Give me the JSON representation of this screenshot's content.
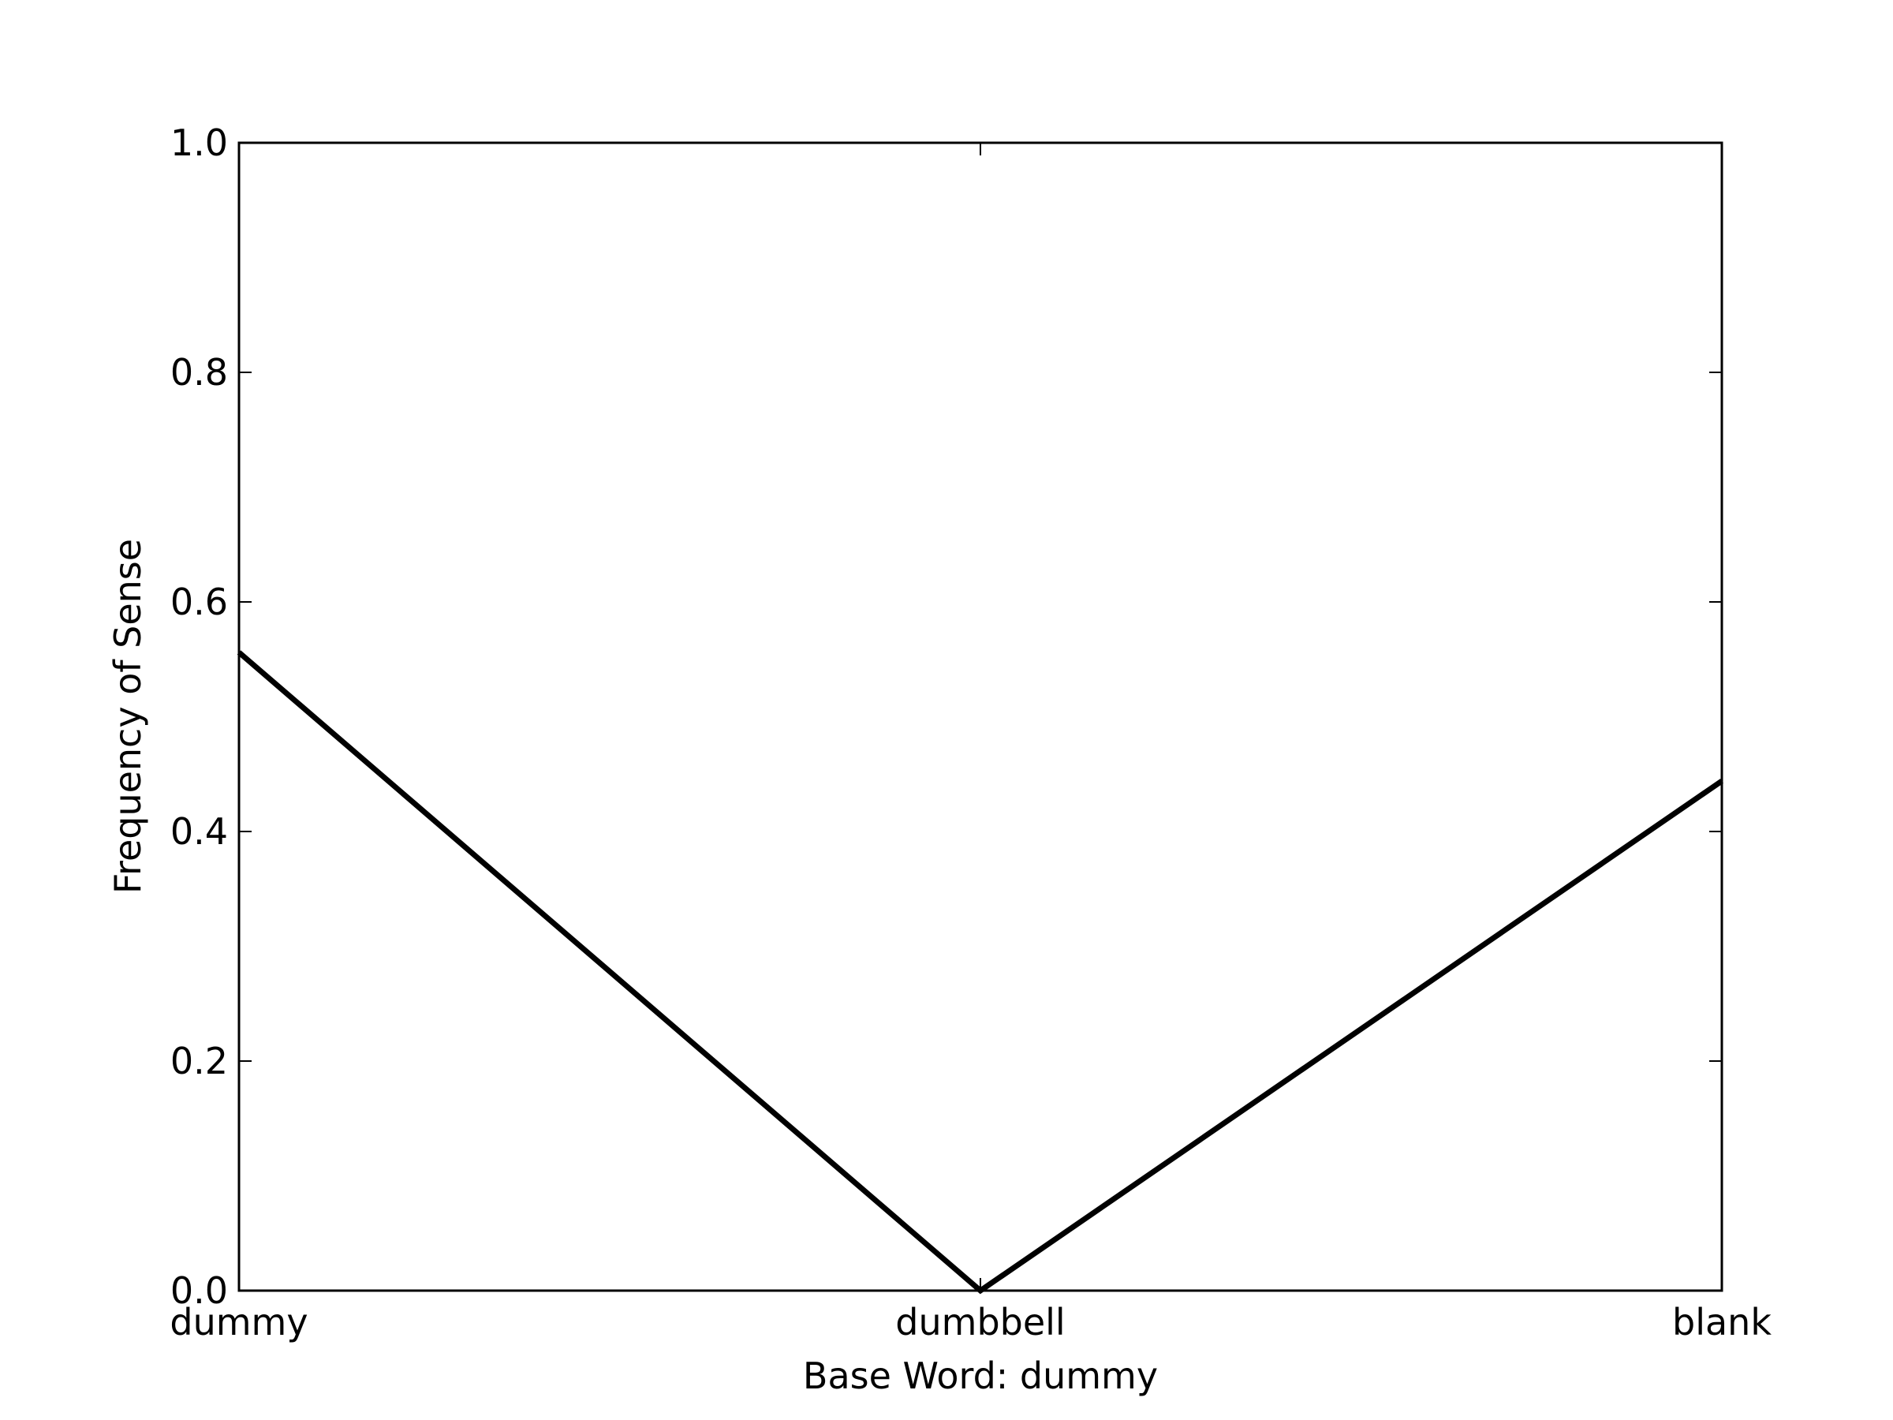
{
  "chart_data": {
    "type": "line",
    "categories": [
      "dummy",
      "dumbbell",
      "blank"
    ],
    "series": [
      {
        "values": [
          0.556,
          0.0,
          0.444
        ]
      }
    ],
    "xlabel": "Base Word: dummy",
    "ylabel": "Frequency of Sense",
    "ylim": [
      0.0,
      1.0
    ],
    "yticks": [
      "0.0",
      "0.2",
      "0.4",
      "0.6",
      "0.8",
      "1.0"
    ],
    "grid": false,
    "line_color": "#000000"
  }
}
